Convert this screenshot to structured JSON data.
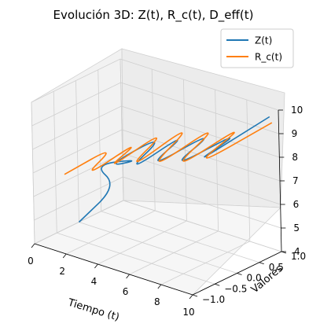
{
  "chart_data": {
    "type": "line",
    "title": "Evolución 3D: Z(t), R_c(t), D_eff(t)",
    "xlabel": "Tiempo (t)",
    "ylabel": "Valores",
    "zlabel": "",
    "xlim": [
      0,
      10
    ],
    "ylim": [
      -1.0,
      1.0
    ],
    "zlim": [
      4,
      10
    ],
    "x_ticks": [
      "0",
      "2",
      "4",
      "6",
      "8",
      "10"
    ],
    "y_ticks": [
      "−1.0",
      "−0.5",
      "0.0",
      "0.5",
      "1.0"
    ],
    "z_ticks": [
      "4",
      "5",
      "6",
      "7",
      "8",
      "9",
      "10"
    ],
    "grid": true,
    "legend_position": "top-right",
    "series": [
      {
        "name": "Z(t)",
        "color": "#1f77b4",
        "description": "curve from low-left rising and oscillating toward the upper right",
        "points": [
          {
            "t": 0.0,
            "v": 0.0,
            "d": 4.0
          },
          {
            "t": 1.2,
            "v": 0.45,
            "d": 5.4
          },
          {
            "t": 2.0,
            "v": -0.35,
            "d": 7.2
          },
          {
            "t": 2.7,
            "v": 0.5,
            "d": 6.8
          },
          {
            "t": 3.4,
            "v": -0.6,
            "d": 7.6
          },
          {
            "t": 4.2,
            "v": 0.55,
            "d": 8.2
          },
          {
            "t": 4.9,
            "v": -0.7,
            "d": 7.7
          },
          {
            "t": 5.6,
            "v": 0.6,
            "d": 8.6
          },
          {
            "t": 6.3,
            "v": -0.75,
            "d": 8.2
          },
          {
            "t": 7.1,
            "v": 0.7,
            "d": 8.9
          },
          {
            "t": 7.9,
            "v": -0.8,
            "d": 8.6
          },
          {
            "t": 8.7,
            "v": 0.75,
            "d": 9.2
          },
          {
            "t": 9.4,
            "v": -0.85,
            "d": 9.1
          },
          {
            "t": 10.0,
            "v": 0.8,
            "d": 9.9
          }
        ]
      },
      {
        "name": "R_c(t)",
        "color": "#ff7f0e",
        "description": "oscillating curve starting mid-left and zigzagging to the upper right",
        "points": [
          {
            "t": 0.0,
            "v": -0.3,
            "d": 6.3
          },
          {
            "t": 0.8,
            "v": 0.6,
            "d": 6.9
          },
          {
            "t": 1.6,
            "v": -0.5,
            "d": 6.6
          },
          {
            "t": 2.4,
            "v": 0.65,
            "d": 7.5
          },
          {
            "t": 3.2,
            "v": -0.6,
            "d": 7.3
          },
          {
            "t": 4.0,
            "v": 0.7,
            "d": 8.3
          },
          {
            "t": 4.8,
            "v": -0.7,
            "d": 7.7
          },
          {
            "t": 5.6,
            "v": 0.75,
            "d": 8.9
          },
          {
            "t": 6.4,
            "v": -0.8,
            "d": 8.1
          },
          {
            "t": 7.2,
            "v": 0.8,
            "d": 9.2
          },
          {
            "t": 8.0,
            "v": -0.85,
            "d": 8.5
          },
          {
            "t": 8.8,
            "v": 0.85,
            "d": 9.5
          },
          {
            "t": 9.6,
            "v": -0.9,
            "d": 9.1
          },
          {
            "t": 10.0,
            "v": 0.85,
            "d": 9.6
          }
        ]
      }
    ]
  }
}
